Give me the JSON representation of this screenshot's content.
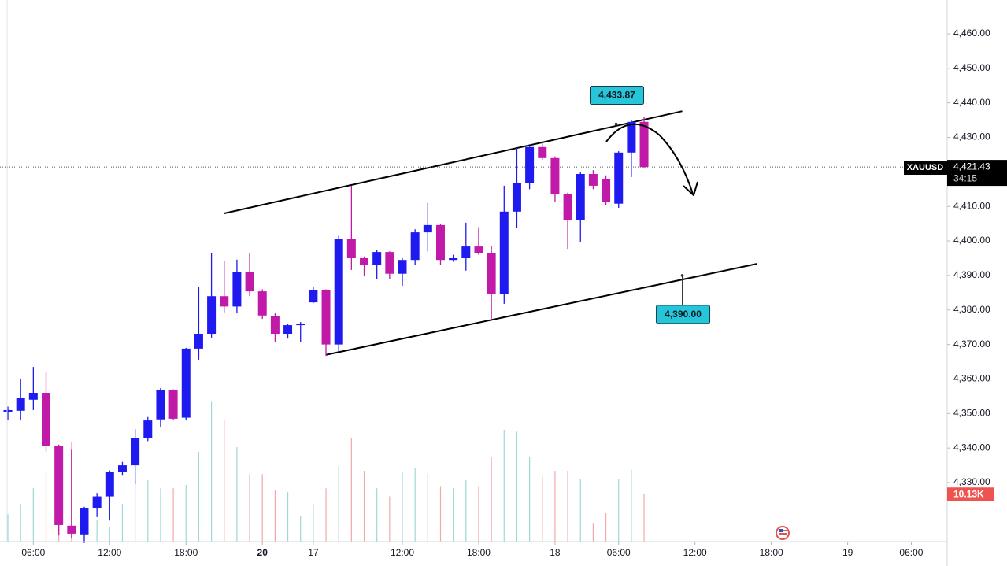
{
  "chart_data": {
    "type": "candlestick",
    "symbol": "XAUUSD",
    "open": [
      4350.5,
      4350.8,
      4354,
      4356,
      4340.5,
      4317.5,
      4315,
      4322.7,
      4326,
      4333,
      4335,
      4343,
      4348.3,
      4356.7,
      4348.8,
      4368.8,
      4373.1,
      4384,
      4381,
      4391,
      4385.4,
      4378.2,
      4373.1,
      4375.6,
      4382.2,
      4385.7,
      4370,
      4400.5,
      4395,
      4393,
      4396.8,
      4390.5,
      4394.5,
      4402.5,
      4404.6,
      4394.5,
      4395,
      4398.4,
      4396.4,
      4384.7,
      4408.5,
      4416.7,
      4427.2,
      4424,
      4413.5,
      4406,
      4419.4,
      4418,
      4410.8,
      4425.6,
      4434.5
    ],
    "high": [
      4352,
      4360,
      4363.5,
      4362,
      4341,
      4339.5,
      4323,
      4327,
      4333.5,
      4336,
      4345.5,
      4349,
      4357.4,
      4357,
      4369,
      4386.6,
      4396.6,
      4394.3,
      4394.6,
      4396.4,
      4386,
      4379,
      4376,
      4376.5,
      4386.6,
      4386,
      4401.5,
      4416,
      4395.5,
      4397.5,
      4397,
      4395,
      4403.4,
      4411,
      4405,
      4396,
      4405.3,
      4404,
      4398.5,
      4416,
      4427,
      4427.6,
      4428.3,
      4424.5,
      4414,
      4420,
      4420.5,
      4419,
      4426,
      4435,
      4436
    ],
    "low": [
      4348,
      4348,
      4351,
      4339,
      4314.7,
      4314,
      4312.5,
      4320,
      4319,
      4332,
      4329.5,
      4342,
      4346,
      4348,
      4348,
      4365.6,
      4372,
      4379.3,
      4379,
      4384,
      4377.4,
      4370.8,
      4371.7,
      4370.6,
      4382,
      4366.7,
      4368,
      4391.6,
      4390,
      4389,
      4389,
      4387,
      4393,
      4397,
      4393,
      4394,
      4391.4,
      4396,
      4377.2,
      4381.8,
      4403.7,
      4415,
      4423.5,
      4411.4,
      4397.7,
      4399.8,
      4415,
      4410.5,
      4409.6,
      4418.5,
      4421
    ],
    "close": [
      4351,
      4354.5,
      4356,
      4340.5,
      4317.7,
      4315.2,
      4322.7,
      4326,
      4333,
      4335,
      4343,
      4348,
      4356.7,
      4348.5,
      4368.8,
      4373.1,
      4384,
      4381,
      4391,
      4385.4,
      4378.4,
      4373.1,
      4375.6,
      4376,
      4385.7,
      4370,
      4400.7,
      4395,
      4393,
      4396.8,
      4390.5,
      4394.5,
      4402.5,
      4404.6,
      4394.5,
      4395,
      4398.4,
      4396.4,
      4384.7,
      4408.5,
      4416.7,
      4427.2,
      4424,
      4413.5,
      4406,
      4419.4,
      4416,
      4411.2,
      4425.6,
      4434.5,
      4421.43
    ],
    "volume": [
      5.8,
      8,
      11.3,
      14.7,
      19.6,
      21,
      6.3,
      4.6,
      3,
      8,
      13,
      13,
      11.3,
      11.3,
      12,
      19,
      29.6,
      25.8,
      20,
      14.3,
      14.3,
      11,
      10.5,
      5.5,
      8,
      11.3,
      16,
      22,
      15,
      11.3,
      9.6,
      14.7,
      15.5,
      14.3,
      11.6,
      11.3,
      13,
      11.6,
      18,
      23.7,
      23.3,
      18,
      13.8,
      15,
      15,
      13.3,
      3.8,
      6,
      13.3,
      15.2,
      10.13
    ],
    "current_volume": {
      "value": 10.13,
      "label": "10.13K"
    },
    "up_color": "#1f1bf0",
    "down_color": "#c21aa8",
    "volume_up_color": "#9fd8d4",
    "volume_down_color": "#f2a9a9",
    "xlim": [
      -0.62,
      73.82
    ],
    "ylim": [
      4312.9,
      4469.8
    ],
    "volume_lim": [
      0,
      114.7
    ],
    "xticks": [
      {
        "value": 2,
        "label": "06:00"
      },
      {
        "value": 8,
        "label": "12:00"
      },
      {
        "value": 14,
        "label": "18:00"
      },
      20,
      {
        "value": 24,
        "label": "17"
      },
      {
        "value": 31,
        "label": "12:00"
      },
      {
        "value": 37,
        "label": "18:00"
      },
      {
        "value": 43,
        "label": "18"
      },
      {
        "value": 48,
        "label": "06:00"
      },
      {
        "value": 54,
        "label": "12:00"
      },
      {
        "value": 60,
        "label": "18:00"
      },
      {
        "value": 66,
        "label": "19"
      },
      {
        "value": 71,
        "label": "06:00"
      }
    ],
    "yticks": [
      {
        "value": 4330,
        "label": "4,330.00"
      },
      {
        "value": 4340,
        "label": "4,340.00"
      },
      {
        "value": 4350,
        "label": "4,350.00"
      },
      {
        "value": 4360,
        "label": "4,360.00"
      },
      {
        "value": 4370,
        "label": "4,370.00"
      },
      {
        "value": 4380,
        "label": "4,380.00"
      },
      {
        "value": 4390,
        "label": "4,390.00"
      },
      {
        "value": 4400,
        "label": "4,400.00"
      },
      {
        "value": 4410,
        "label": "4,410.00"
      },
      {
        "value": 4420,
        "label": "4,420.00"
      },
      {
        "value": 4430,
        "label": "4,430.00"
      },
      {
        "value": 4440,
        "label": "4,440.00"
      },
      {
        "value": 4450,
        "label": "4,450.00"
      },
      {
        "value": 4460,
        "label": "4,460.00"
      }
    ],
    "current_price": {
      "value": 4421.43,
      "label": "4,421.43",
      "countdown": "34:15"
    },
    "channel": [
      {
        "points": [
          [
            17,
            4408.0
          ],
          [
            53,
            4437.6
          ]
        ]
      },
      {
        "points": [
          [
            25,
            4367.0
          ],
          [
            58.9,
            4393.4
          ]
        ]
      }
    ],
    "callouts": [
      {
        "index": 47.8,
        "value": 4433.87,
        "label": "4,433.87",
        "side": "above"
      },
      {
        "index": 53,
        "value": 4390,
        "label": "4,390.00",
        "side": "below"
      }
    ]
  }
}
